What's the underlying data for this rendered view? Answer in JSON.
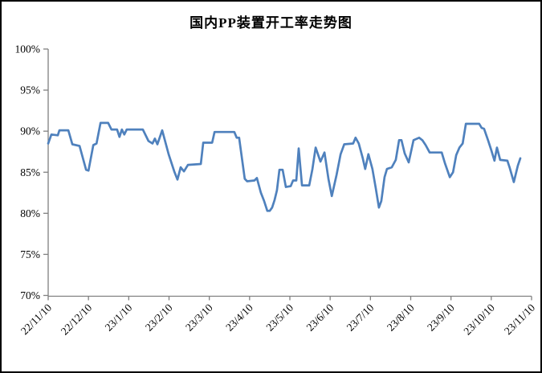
{
  "chart_data": {
    "type": "line",
    "title": "国内PP装置开工率走势图",
    "xlabel": "",
    "ylabel": "",
    "ylim": [
      70,
      100
    ],
    "y_tick_step": 5,
    "y_tick_labels": [
      "100%",
      "95%",
      "90%",
      "85%",
      "80%",
      "75%",
      "70%"
    ],
    "x_tick_labels": [
      "22/11/10",
      "22/12/10",
      "23/1/10",
      "23/2/10",
      "23/3/10",
      "23/4/10",
      "23/5/10",
      "23/6/10",
      "23/7/10",
      "23/8/10",
      "23/9/10",
      "23/10/10",
      "23/11/10"
    ],
    "x_range_months": [
      0,
      12
    ],
    "grid": false,
    "legend": false,
    "line_color": "#4F81BD",
    "axis_color": "#808080",
    "series": [
      {
        "name": "国内PP装置开工率",
        "unit": "%",
        "points": [
          [
            0,
            88.5
          ],
          [
            0.08,
            89.6
          ],
          [
            0.24,
            89.5
          ],
          [
            0.28,
            90.1
          ],
          [
            0.5,
            90.1
          ],
          [
            0.6,
            88.4
          ],
          [
            0.78,
            88.2
          ],
          [
            0.94,
            85.3
          ],
          [
            1,
            85.2
          ],
          [
            1.12,
            88.3
          ],
          [
            1.2,
            88.5
          ],
          [
            1.3,
            91
          ],
          [
            1.49,
            91
          ],
          [
            1.57,
            90.2
          ],
          [
            1.71,
            90.2
          ],
          [
            1.77,
            89.3
          ],
          [
            1.83,
            90.2
          ],
          [
            1.89,
            89.6
          ],
          [
            1.95,
            90.2
          ],
          [
            2.35,
            90.2
          ],
          [
            2.49,
            88.8
          ],
          [
            2.59,
            88.5
          ],
          [
            2.65,
            89.1
          ],
          [
            2.71,
            88.4
          ],
          [
            2.83,
            90.1
          ],
          [
            2.99,
            87.2
          ],
          [
            3.13,
            85.1
          ],
          [
            3.21,
            84.1
          ],
          [
            3.29,
            85.6
          ],
          [
            3.37,
            85.1
          ],
          [
            3.47,
            85.9
          ],
          [
            3.79,
            86
          ],
          [
            3.85,
            88.6
          ],
          [
            4.07,
            88.6
          ],
          [
            4.13,
            89.9
          ],
          [
            4.62,
            89.9
          ],
          [
            4.68,
            89.2
          ],
          [
            4.74,
            89.2
          ],
          [
            4.88,
            84.2
          ],
          [
            4.94,
            83.9
          ],
          [
            5.12,
            84
          ],
          [
            5.18,
            84.3
          ],
          [
            5.28,
            82.5
          ],
          [
            5.36,
            81.5
          ],
          [
            5.44,
            80.3
          ],
          [
            5.5,
            80.3
          ],
          [
            5.56,
            80.7
          ],
          [
            5.62,
            81.6
          ],
          [
            5.68,
            82.8
          ],
          [
            5.74,
            85.3
          ],
          [
            5.82,
            85.3
          ],
          [
            5.9,
            83.2
          ],
          [
            6.02,
            83.3
          ],
          [
            6.08,
            84
          ],
          [
            6.16,
            84
          ],
          [
            6.22,
            87.9
          ],
          [
            6.3,
            83.4
          ],
          [
            6.48,
            83.4
          ],
          [
            6.56,
            85.4
          ],
          [
            6.64,
            88
          ],
          [
            6.76,
            86.3
          ],
          [
            6.86,
            87.4
          ],
          [
            6.96,
            84.1
          ],
          [
            7.04,
            82.1
          ],
          [
            7.16,
            84.7
          ],
          [
            7.26,
            87.2
          ],
          [
            7.35,
            88.4
          ],
          [
            7.57,
            88.5
          ],
          [
            7.63,
            89.2
          ],
          [
            7.71,
            88.5
          ],
          [
            7.81,
            86.7
          ],
          [
            7.87,
            85.4
          ],
          [
            7.95,
            87.2
          ],
          [
            8.05,
            85.4
          ],
          [
            8.13,
            83.1
          ],
          [
            8.21,
            80.7
          ],
          [
            8.27,
            81.5
          ],
          [
            8.35,
            84.4
          ],
          [
            8.41,
            85.4
          ],
          [
            8.53,
            85.6
          ],
          [
            8.63,
            86.5
          ],
          [
            8.71,
            88.9
          ],
          [
            8.77,
            88.9
          ],
          [
            8.85,
            87.3
          ],
          [
            8.95,
            86.2
          ],
          [
            9.07,
            88.9
          ],
          [
            9.21,
            89.2
          ],
          [
            9.29,
            88.9
          ],
          [
            9.37,
            88.3
          ],
          [
            9.47,
            87.4
          ],
          [
            9.77,
            87.4
          ],
          [
            9.85,
            86.1
          ],
          [
            9.97,
            84.4
          ],
          [
            10.05,
            85
          ],
          [
            10.13,
            87.1
          ],
          [
            10.21,
            88
          ],
          [
            10.29,
            88.5
          ],
          [
            10.37,
            90.9
          ],
          [
            10.7,
            90.9
          ],
          [
            10.76,
            90.4
          ],
          [
            10.82,
            90.3
          ],
          [
            10.92,
            88.9
          ],
          [
            11,
            87.7
          ],
          [
            11.08,
            86.4
          ],
          [
            11.14,
            88
          ],
          [
            11.22,
            86.5
          ],
          [
            11.4,
            86.4
          ],
          [
            11.46,
            85.5
          ],
          [
            11.56,
            83.8
          ],
          [
            11.66,
            85.8
          ],
          [
            11.72,
            86.7
          ]
        ]
      }
    ]
  }
}
